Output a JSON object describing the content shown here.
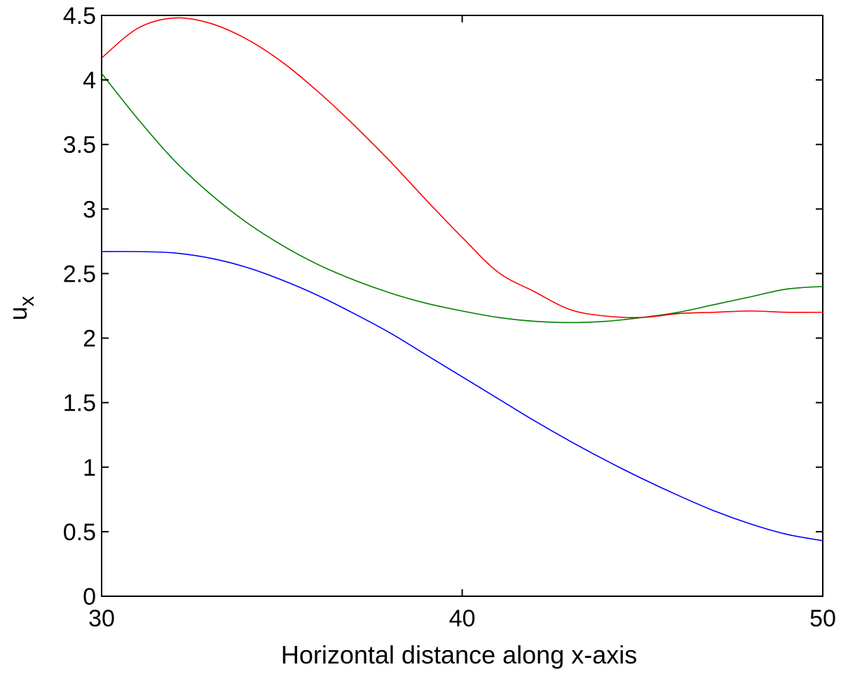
{
  "chart_data": {
    "type": "line",
    "title": "",
    "xlabel": "Horizontal distance along x-axis",
    "ylabel": "u",
    "ylabel_sub": "x",
    "xlim": [
      30,
      50
    ],
    "ylim": [
      0,
      4.5
    ],
    "xticks": [
      30,
      40,
      50
    ],
    "yticks": [
      0,
      0.5,
      1,
      1.5,
      2,
      2.5,
      3,
      3.5,
      4,
      4.5
    ],
    "xtick_labels": [
      "30",
      "40",
      "50"
    ],
    "ytick_labels": [
      "0",
      "0.5",
      "1",
      "1.5",
      "2",
      "2.5",
      "3",
      "3.5",
      "4",
      "4.5"
    ],
    "grid": false,
    "legend": false,
    "x": [
      30,
      31,
      32,
      33,
      34,
      35,
      36,
      37,
      38,
      39,
      40,
      41,
      42,
      43,
      44,
      45,
      46,
      47,
      48,
      49,
      50
    ],
    "series": [
      {
        "color": "#0000ff",
        "values": [
          2.67,
          2.67,
          2.66,
          2.62,
          2.55,
          2.45,
          2.33,
          2.19,
          2.04,
          1.87,
          1.7,
          1.53,
          1.36,
          1.2,
          1.05,
          0.91,
          0.78,
          0.66,
          0.56,
          0.48,
          0.43
        ]
      },
      {
        "color": "#008000",
        "values": [
          4.05,
          3.7,
          3.38,
          3.12,
          2.9,
          2.72,
          2.57,
          2.45,
          2.35,
          2.27,
          2.21,
          2.16,
          2.13,
          2.12,
          2.13,
          2.16,
          2.2,
          2.26,
          2.32,
          2.38,
          2.4
        ]
      },
      {
        "color": "#ff0000",
        "values": [
          4.17,
          4.4,
          4.48,
          4.44,
          4.32,
          4.14,
          3.91,
          3.65,
          3.37,
          3.07,
          2.78,
          2.51,
          2.36,
          2.22,
          2.17,
          2.16,
          2.19,
          2.2,
          2.21,
          2.2,
          2.2
        ]
      }
    ]
  }
}
